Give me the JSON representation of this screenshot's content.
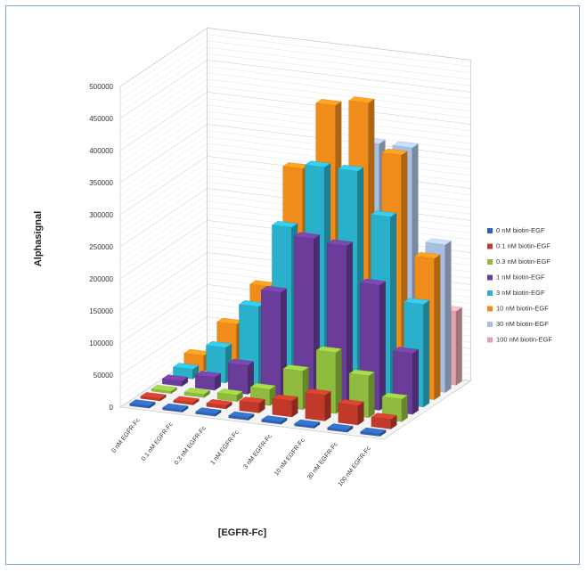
{
  "chart_data": {
    "type": "bar",
    "subtype": "3d-column",
    "title": "",
    "xlabel": "[EGFR-Fc]",
    "ylabel": "Alphasignal",
    "ylim": [
      0,
      500000
    ],
    "yticks": [
      "0",
      "50000",
      "100000",
      "150000",
      "200000",
      "250000",
      "300000",
      "350000",
      "400000",
      "450000",
      "500000"
    ],
    "yticks_values": [
      0,
      50000,
      100000,
      150000,
      200000,
      250000,
      300000,
      350000,
      400000,
      450000,
      500000
    ],
    "categories": [
      "0 nM  EGFR-Fc",
      "0.1 nM EGFR-Fc",
      "0.3 nM EGFR-Fc",
      "1 nM  EGFR-Fc",
      "3 nM  EGFR-Fc",
      "10 nM EGFR-Fc",
      "30 nM EGFR-Fc",
      "100 nM EGFR-Fc"
    ],
    "legend_position": "right",
    "grid": true,
    "series": [
      {
        "name": "0 nM biotin-EGF",
        "color": "#2e63b3",
        "values": [
          0,
          0,
          0,
          0,
          0,
          0,
          0,
          0
        ]
      },
      {
        "name": "0.1 nM biotin-EGF",
        "color": "#c0392b",
        "values": [
          2000,
          3000,
          5000,
          15000,
          25000,
          40000,
          30000,
          15000
        ]
      },
      {
        "name": "0.3 nM biotin-EGF",
        "color": "#8fbc3f",
        "values": [
          2000,
          5000,
          10000,
          25000,
          60000,
          95000,
          65000,
          35000
        ]
      },
      {
        "name": "1 nM biotin-EGF",
        "color": "#6a3d9a",
        "values": [
          8000,
          20000,
          45000,
          165000,
          255000,
          250000,
          195000,
          95000
        ]
      },
      {
        "name": "3 nM biotin-EGF",
        "color": "#2bb0cc",
        "values": [
          15000,
          55000,
          125000,
          255000,
          355000,
          355000,
          290000,
          160000
        ]
      },
      {
        "name": "10 nM biotin-EGF",
        "color": "#f08c1a",
        "values": [
          25000,
          80000,
          145000,
          335000,
          440000,
          450000,
          375000,
          220000
        ]
      },
      {
        "name": "30 nM biotin-EGF",
        "color": "#a9bfe0",
        "values": [
          5000,
          15000,
          40000,
          95000,
          245000,
          375000,
          375000,
          230000
        ]
      },
      {
        "name": "100 nM biotin-EGF",
        "color": "#e0a4ac",
        "values": [
          2000,
          5000,
          15000,
          40000,
          70000,
          110000,
          130000,
          115000
        ]
      }
    ]
  }
}
